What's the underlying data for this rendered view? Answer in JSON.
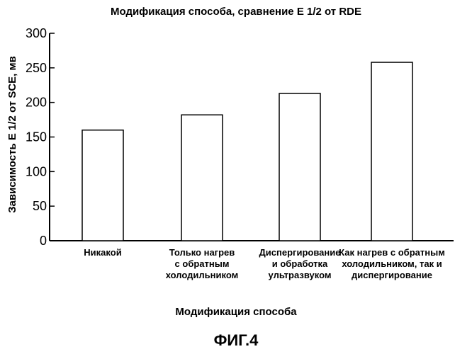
{
  "chart_data": {
    "type": "bar",
    "title": "Модификация способа, сравнение Е 1/2 от RDE",
    "xlabel": "Модификация способа",
    "ylabel": "Зависимость Е 1/2 от SCE, мв",
    "categories": [
      [
        "Никакой"
      ],
      [
        "Только нагрев",
        "с обратным",
        "холодильником"
      ],
      [
        "Диспергирование",
        "и обработка",
        "ультразвуком"
      ],
      [
        "Как нагрев с обратным",
        "холодильником, так и",
        "диспергирование"
      ]
    ],
    "values": [
      160,
      182,
      213,
      258
    ],
    "ylim": [
      0,
      300
    ],
    "yticks": [
      0,
      50,
      100,
      150,
      200,
      250,
      300
    ],
    "grid": false
  },
  "figure_label": "ФИГ.4"
}
